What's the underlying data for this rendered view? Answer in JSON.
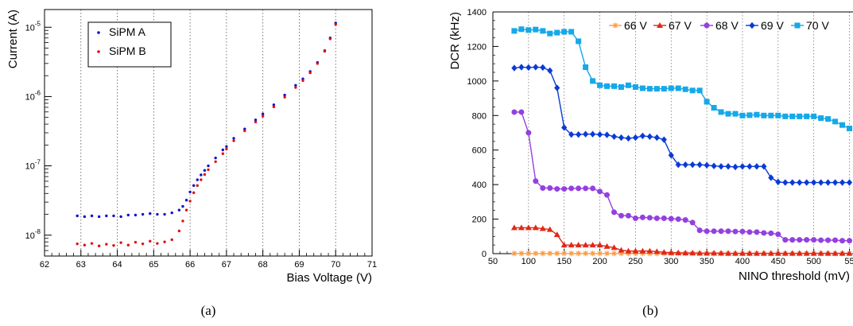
{
  "figure": {
    "captions": [
      "(a)",
      "(b)"
    ]
  },
  "chart_data": [
    {
      "type": "scatter",
      "xlabel": "Bias Voltage (V)",
      "ylabel": "Current (A)",
      "xlim": [
        62,
        71
      ],
      "ylim": [
        5e-09,
        1.8e-05
      ],
      "yscale": "log",
      "xticks": [
        "62",
        "63",
        "64",
        "65",
        "66",
        "67",
        "68",
        "69",
        "70",
        "71"
      ],
      "yticks": [
        {
          "value": 1e-08,
          "base": "10",
          "exp": "-8"
        },
        {
          "value": 1e-07,
          "base": "10",
          "exp": "-7"
        },
        {
          "value": 1e-06,
          "base": "10",
          "exp": "-6"
        },
        {
          "value": 1e-05,
          "base": "10",
          "exp": "-5"
        }
      ],
      "grid": "vertical dotted",
      "legend_position": "top-left",
      "series": [
        {
          "name": "SiPM A",
          "color": "#1010d0",
          "x": [
            62.9,
            63.1,
            63.3,
            63.5,
            63.7,
            63.9,
            64.1,
            64.3,
            64.5,
            64.7,
            64.9,
            65.1,
            65.3,
            65.5,
            65.7,
            65.8,
            65.9,
            66.0,
            66.1,
            66.2,
            66.3,
            66.4,
            66.5,
            66.7,
            66.9,
            67.0,
            67.2,
            67.5,
            67.8,
            68.0,
            68.3,
            68.6,
            68.9,
            69.1,
            69.3,
            69.5,
            69.7,
            69.85,
            70.0
          ],
          "y": [
            1.9e-08,
            1.85e-08,
            1.9e-08,
            1.85e-08,
            1.9e-08,
            1.9e-08,
            1.85e-08,
            1.95e-08,
            1.95e-08,
            2e-08,
            2.05e-08,
            2e-08,
            2e-08,
            2.1e-08,
            2.3e-08,
            2.6e-08,
            3.2e-08,
            4.2e-08,
            5.2e-08,
            6.3e-08,
            7.4e-08,
            8.6e-08,
            1e-07,
            1.3e-07,
            1.7e-07,
            1.9e-07,
            2.5e-07,
            3.4e-07,
            4.6e-07,
            5.6e-07,
            7.6e-07,
            1.05e-06,
            1.45e-06,
            1.8e-06,
            2.3e-06,
            3.1e-06,
            4.6e-06,
            7e-06,
            1.15e-05
          ]
        },
        {
          "name": "SiPM B",
          "color": "#e01010",
          "x": [
            62.9,
            63.1,
            63.3,
            63.5,
            63.7,
            63.9,
            64.1,
            64.3,
            64.5,
            64.7,
            64.9,
            65.1,
            65.3,
            65.5,
            65.7,
            65.8,
            65.9,
            66.0,
            66.1,
            66.2,
            66.3,
            66.4,
            66.5,
            66.7,
            66.9,
            67.0,
            67.2,
            67.5,
            67.8,
            68.0,
            68.3,
            68.6,
            68.9,
            69.1,
            69.3,
            69.5,
            69.7,
            69.85,
            70.0
          ],
          "y": [
            7.5e-09,
            7.2e-09,
            7.6e-09,
            7e-09,
            7.4e-09,
            7.1e-09,
            7.8e-09,
            7.2e-09,
            7.9e-09,
            7.5e-09,
            8.2e-09,
            7.6e-09,
            8e-09,
            8.6e-09,
            1.15e-08,
            1.6e-08,
            2.3e-08,
            3.1e-08,
            4.1e-08,
            5.2e-08,
            6.3e-08,
            7.5e-08,
            8.8e-08,
            1.15e-07,
            1.5e-07,
            1.75e-07,
            2.3e-07,
            3.2e-07,
            4.3e-07,
            5.2e-07,
            7.1e-07,
            9.8e-07,
            1.35e-06,
            1.7e-06,
            2.2e-06,
            3e-06,
            4.5e-06,
            6.8e-06,
            1.1e-05
          ]
        }
      ]
    },
    {
      "type": "line",
      "xlabel": "NINO threshold (mV)",
      "ylabel": "DCR (kHz)",
      "xlim": [
        50,
        555
      ],
      "ylim": [
        0,
        1400
      ],
      "xticks": [
        "50",
        "100",
        "150",
        "200",
        "250",
        "300",
        "350",
        "400",
        "450",
        "500",
        "55"
      ],
      "yticks": [
        "0",
        "200",
        "400",
        "600",
        "800",
        "1000",
        "1200",
        "1400"
      ],
      "grid": "vertical dotted",
      "legend_position": "top-right",
      "x": [
        80,
        90,
        100,
        110,
        120,
        130,
        140,
        150,
        160,
        170,
        180,
        190,
        200,
        210,
        220,
        230,
        240,
        250,
        260,
        270,
        280,
        290,
        300,
        310,
        320,
        330,
        340,
        350,
        360,
        370,
        380,
        390,
        400,
        410,
        420,
        430,
        440,
        450,
        460,
        470,
        480,
        490,
        500,
        510,
        520,
        530,
        540,
        550
      ],
      "series": [
        {
          "name": "66 V",
          "color": "#ff9a3c",
          "marker": "star",
          "values": [
            1,
            1,
            1,
            1,
            1,
            1,
            1,
            1,
            1,
            1,
            1,
            1,
            1,
            1,
            1,
            1,
            1,
            1,
            1,
            1,
            1,
            1,
            1,
            1,
            1,
            1,
            1,
            1,
            1,
            1,
            1,
            1,
            1,
            1,
            1,
            1,
            1,
            1,
            1,
            1,
            1,
            1,
            1,
            1,
            1,
            1,
            1,
            1
          ]
        },
        {
          "name": "67 V",
          "color": "#e02818",
          "marker": "triangle",
          "values": [
            150,
            150,
            150,
            150,
            145,
            140,
            110,
            50,
            50,
            50,
            50,
            50,
            50,
            42,
            35,
            20,
            15,
            15,
            15,
            15,
            12,
            8,
            6,
            5,
            4,
            4,
            3,
            3,
            3,
            3,
            2,
            2,
            2,
            2,
            2,
            2,
            2,
            2,
            2,
            2,
            2,
            2,
            2,
            2,
            2,
            2,
            2,
            2
          ]
        },
        {
          "name": "68 V",
          "color": "#9440e0",
          "marker": "circle",
          "values": [
            820,
            820,
            700,
            420,
            380,
            380,
            375,
            375,
            378,
            378,
            378,
            378,
            360,
            340,
            240,
            220,
            220,
            205,
            210,
            208,
            205,
            205,
            202,
            200,
            195,
            180,
            135,
            130,
            130,
            130,
            130,
            128,
            128,
            125,
            125,
            120,
            118,
            112,
            80,
            80,
            80,
            80,
            80,
            78,
            78,
            78,
            75,
            75
          ]
        },
        {
          "name": "69 V",
          "color": "#0a3ad8",
          "marker": "diamond",
          "values": [
            1075,
            1080,
            1078,
            1080,
            1078,
            1060,
            960,
            730,
            690,
            690,
            692,
            692,
            690,
            688,
            678,
            672,
            668,
            672,
            682,
            678,
            672,
            660,
            570,
            515,
            515,
            515,
            515,
            512,
            508,
            505,
            505,
            502,
            505,
            505,
            505,
            505,
            440,
            415,
            412,
            412,
            412,
            412,
            412,
            412,
            412,
            412,
            412,
            412
          ]
        },
        {
          "name": "70 V",
          "color": "#16a8e8",
          "marker": "square",
          "values": [
            1290,
            1300,
            1295,
            1298,
            1290,
            1275,
            1280,
            1285,
            1285,
            1230,
            1080,
            1000,
            975,
            970,
            970,
            965,
            975,
            965,
            958,
            955,
            955,
            955,
            958,
            958,
            952,
            945,
            945,
            880,
            845,
            820,
            810,
            810,
            800,
            802,
            805,
            800,
            800,
            800,
            795,
            795,
            795,
            795,
            795,
            785,
            780,
            765,
            745,
            725
          ]
        }
      ]
    }
  ]
}
